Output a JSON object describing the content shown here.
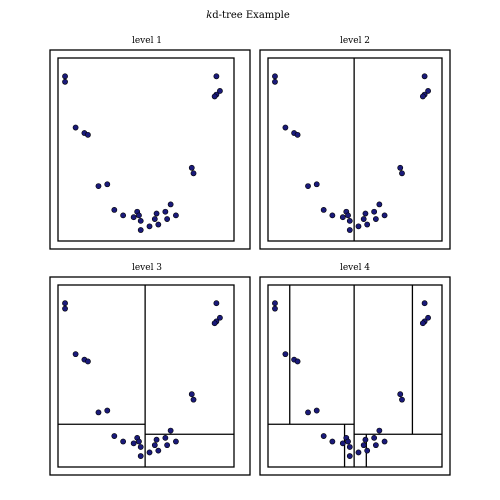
{
  "figure": {
    "title_italic": "k",
    "title_rest": "d-tree Example"
  },
  "colors": {
    "point_fill": "#1a1a7a",
    "point_stroke": "#000000",
    "line": "#000000"
  },
  "chart_data": {
    "type": "scatter",
    "panels": [
      {
        "title": "level 1",
        "depth": 1
      },
      {
        "title": "level 2",
        "depth": 2
      },
      {
        "title": "level 3",
        "depth": 3
      },
      {
        "title": "level 4",
        "depth": 4
      }
    ],
    "xlim": [
      0,
      100
    ],
    "ylim": [
      0,
      100
    ],
    "grid": false,
    "ticks": false,
    "points": [
      [
        4,
        90
      ],
      [
        4,
        87
      ],
      [
        90,
        90
      ],
      [
        92,
        82
      ],
      [
        90,
        80
      ],
      [
        89,
        79
      ],
      [
        10,
        62
      ],
      [
        15,
        59
      ],
      [
        17,
        58
      ],
      [
        76,
        40
      ],
      [
        77,
        37
      ],
      [
        23,
        30
      ],
      [
        28,
        31
      ],
      [
        32,
        17
      ],
      [
        37,
        14
      ],
      [
        43,
        13
      ],
      [
        45,
        16
      ],
      [
        46,
        14
      ],
      [
        47,
        11
      ],
      [
        47,
        6
      ],
      [
        52,
        8
      ],
      [
        55,
        12
      ],
      [
        56,
        15
      ],
      [
        57,
        9
      ],
      [
        61,
        16
      ],
      [
        62,
        12
      ],
      [
        64,
        20
      ],
      [
        67,
        14
      ]
    ]
  }
}
